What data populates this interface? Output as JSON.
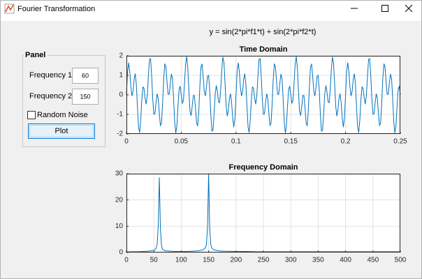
{
  "window": {
    "title": "Fourier Transformation"
  },
  "equation": "y = sin(2*pi*f1*t) + sin(2*pi*f2*t)",
  "panel": {
    "title": "Panel",
    "fields": [
      {
        "label": "Frequency 1",
        "value": "60"
      },
      {
        "label": "Frequency 2",
        "value": "150"
      }
    ],
    "checkbox": {
      "label": "Random Noise",
      "checked": false
    },
    "button": "Plot"
  },
  "chart_data": [
    {
      "type": "line",
      "title": "Time Domain",
      "color": "#0072bd",
      "grid": true,
      "xlim": [
        0,
        0.25
      ],
      "ylim": [
        -2,
        2
      ],
      "xticks": [
        0,
        0.05,
        0.1,
        0.15,
        0.2,
        0.25
      ],
      "yticks": [
        -2,
        -1,
        0,
        1,
        2
      ],
      "x": [
        0,
        0.001,
        0.002,
        0.003,
        0.004,
        0.005,
        0.006,
        0.007,
        0.008,
        0.009,
        0.01,
        0.011,
        0.012,
        0.013,
        0.014,
        0.015,
        0.016,
        0.017,
        0.018,
        0.019,
        0.02,
        0.021,
        0.022,
        0.023,
        0.024,
        0.025,
        0.026,
        0.027,
        0.028,
        0.029,
        0.03,
        0.031,
        0.032,
        0.033,
        0.034,
        0.035,
        0.036,
        0.037,
        0.038,
        0.039,
        0.04,
        0.041,
        0.042,
        0.043,
        0.044,
        0.045,
        0.046,
        0.047,
        0.048,
        0.049,
        0.05,
        0.051,
        0.052,
        0.053,
        0.054,
        0.055,
        0.056,
        0.057,
        0.058,
        0.059,
        0.06,
        0.061,
        0.062,
        0.063,
        0.064,
        0.065,
        0.066,
        0.067,
        0.068,
        0.069,
        0.07,
        0.071,
        0.072,
        0.073,
        0.074,
        0.075,
        0.076,
        0.077,
        0.078,
        0.079,
        0.08,
        0.081,
        0.082,
        0.083,
        0.084,
        0.085,
        0.086,
        0.087,
        0.088,
        0.089,
        0.09,
        0.091,
        0.092,
        0.093,
        0.094,
        0.095,
        0.096,
        0.097,
        0.098,
        0.099,
        0.1,
        0.101,
        0.102,
        0.103,
        0.104,
        0.105,
        0.106,
        0.107,
        0.108,
        0.109,
        0.11,
        0.111,
        0.112,
        0.113,
        0.114,
        0.115,
        0.116,
        0.117,
        0.118,
        0.119,
        0.12,
        0.121,
        0.122,
        0.123,
        0.124,
        0.125,
        0.126,
        0.127,
        0.128,
        0.129,
        0.13,
        0.131,
        0.132,
        0.133,
        0.134,
        0.135,
        0.136,
        0.137,
        0.138,
        0.139,
        0.14,
        0.141,
        0.142,
        0.143,
        0.144,
        0.145,
        0.146,
        0.147,
        0.148,
        0.149,
        0.15,
        0.151,
        0.152,
        0.153,
        0.154,
        0.155,
        0.156,
        0.157,
        0.158,
        0.159,
        0.16,
        0.161,
        0.162,
        0.163,
        0.164,
        0.165,
        0.166,
        0.167,
        0.168,
        0.169,
        0.17,
        0.171,
        0.172,
        0.173,
        0.174,
        0.175,
        0.176,
        0.177,
        0.178,
        0.179,
        0.18,
        0.181,
        0.182,
        0.183,
        0.184,
        0.185,
        0.186,
        0.187,
        0.188,
        0.189,
        0.19,
        0.191,
        0.192,
        0.193,
        0.194,
        0.195,
        0.196,
        0.197,
        0.198,
        0.199,
        0.2,
        0.201,
        0.202,
        0.203,
        0.204,
        0.205,
        0.206,
        0.207,
        0.208,
        0.209,
        0.21,
        0.211,
        0.212,
        0.213,
        0.214,
        0.215,
        0.216,
        0.217,
        0.218,
        0.219,
        0.22,
        0.221,
        0.222,
        0.223,
        0.224,
        0.225,
        0.226,
        0.227,
        0.228,
        0.229,
        0.23,
        0.231,
        0.232,
        0.233,
        0.234,
        0.235,
        0.236,
        0.237,
        0.238,
        0.239,
        0.24,
        0.241,
        0.242,
        0.243,
        0.244,
        0.245,
        0.246,
        0.247,
        0.248,
        0.249,
        0.25
      ],
      "values": [
        0,
        1.18,
        1.64,
        1.21,
        0.41,
        -0.05,
        0.18,
        0.79,
        1.08,
        0.56,
        -0.59,
        -1.65,
        -1.93,
        -1.29,
        -0.26,
        0.41,
        0.34,
        -0.18,
        -0.47,
        -0.04,
        0.95,
        1.81,
        1.86,
        0.99,
        -0.22,
        -1,
        -0.96,
        -0.38,
        0.05,
        -0.19,
        -0.95,
        -1.58,
        -1.43,
        -0.43,
        0.84,
        1.59,
        1.43,
        0.67,
        0.03,
        0.04,
        0.59,
        1.06,
        0.83,
        -0.17,
        -1.36,
        -1.95,
        -1.59,
        -0.6,
        0.27,
        0.44,
        0,
        -0.44,
        -0.27,
        0.6,
        1.59,
        1.95,
        1.36,
        0.17,
        -0.83,
        -1.06,
        -0.59,
        -0.04,
        -0.03,
        -0.67,
        -1.43,
        -1.59,
        -0.84,
        0.43,
        1.43,
        1.58,
        0.95,
        0.19,
        -0.05,
        0.38,
        0.96,
        1,
        0.22,
        -0.99,
        -1.86,
        -1.81,
        -0.95,
        0.04,
        0.47,
        0.18,
        -0.34,
        -0.41,
        0.26,
        1.29,
        1.93,
        1.65,
        0.59,
        -0.56,
        -1.08,
        -0.79,
        -0.18,
        0.05,
        -0.41,
        -1.21,
        -1.64,
        -1.18,
        0,
        1.18,
        1.64,
        1.21,
        0.41,
        -0.05,
        0.18,
        0.79,
        1.08,
        0.56,
        -0.59,
        -1.65,
        -1.93,
        -1.29,
        -0.26,
        0.41,
        0.34,
        -0.18,
        -0.47,
        -0.04,
        0.95,
        1.81,
        1.86,
        0.99,
        -0.22,
        -1,
        -0.96,
        -0.38,
        0.05,
        -0.19,
        -0.95,
        -1.58,
        -1.43,
        -0.43,
        0.84,
        1.59,
        1.43,
        0.67,
        0.03,
        0.04,
        0.59,
        1.06,
        0.83,
        -0.17,
        -1.36,
        -1.95,
        -1.59,
        -0.6,
        0.27,
        0.44,
        0,
        -0.44,
        -0.27,
        0.6,
        1.59,
        1.95,
        1.36,
        0.17,
        -0.83,
        -1.06,
        -0.59,
        -0.04,
        -0.03,
        -0.67,
        -1.43,
        -1.59,
        -0.84,
        0.43,
        1.43,
        1.58,
        0.95,
        0.19,
        -0.05,
        0.38,
        0.96,
        1,
        0.22,
        -0.99,
        -1.86,
        -1.81,
        -0.95,
        0.04,
        0.47,
        0.18,
        -0.34,
        -0.41,
        0.26,
        1.29,
        1.93,
        1.65,
        0.59,
        -0.56,
        -1.08,
        -0.79,
        -0.18,
        0.05,
        -0.41,
        -1.21,
        -1.64,
        -1.18,
        0,
        1.18,
        1.64,
        1.21,
        0.41,
        -0.05,
        0.18,
        0.79,
        1.08,
        0.56,
        -0.59,
        -1.65,
        -1.93,
        -1.29,
        -0.26,
        0.41,
        0.34,
        -0.18,
        -0.47,
        -0.04,
        0.95,
        1.81,
        1.86,
        0.99,
        -0.22,
        -1,
        -0.96,
        -0.38,
        0.05,
        -0.19,
        -0.95,
        -1.58,
        -1.43,
        -0.43,
        0.84,
        1.59,
        1.43,
        0.67,
        0.03,
        0.04,
        0.59,
        1.06,
        0.83,
        -0.17,
        -1.36,
        -1.95,
        -1.59,
        -0.6,
        0.27,
        0.44,
        0
      ]
    },
    {
      "type": "line",
      "title": "Frequency Domain",
      "color": "#0072bd",
      "grid": true,
      "xlim": [
        0,
        500
      ],
      "ylim": [
        0,
        30
      ],
      "xticks": [
        0,
        50,
        100,
        150,
        200,
        250,
        300,
        350,
        400,
        450,
        500
      ],
      "yticks": [
        0,
        10,
        20,
        30
      ],
      "x": [
        0,
        10,
        20,
        30,
        40,
        50,
        54,
        56,
        58,
        60,
        62,
        64,
        66,
        70,
        80,
        90,
        100,
        110,
        120,
        130,
        140,
        144,
        146,
        148,
        150,
        152,
        154,
        156,
        160,
        170,
        180,
        200,
        220,
        240,
        260,
        280,
        300,
        320,
        340,
        360,
        380,
        400,
        420,
        440,
        460,
        480,
        500
      ],
      "values": [
        0.2,
        0.3,
        0.3,
        0.4,
        0.5,
        0.8,
        1.5,
        3,
        10,
        28.5,
        9,
        2.5,
        1.2,
        0.7,
        0.5,
        0.4,
        0.4,
        0.4,
        0.5,
        0.6,
        1,
        1.8,
        3,
        10,
        30,
        9.5,
        3,
        1.6,
        1,
        0.6,
        0.5,
        0.4,
        0.4,
        0.3,
        0.3,
        0.3,
        0.3,
        0.3,
        0.3,
        0.3,
        0.3,
        0.3,
        0.3,
        0.3,
        0.3,
        0.3,
        0.3
      ]
    }
  ]
}
